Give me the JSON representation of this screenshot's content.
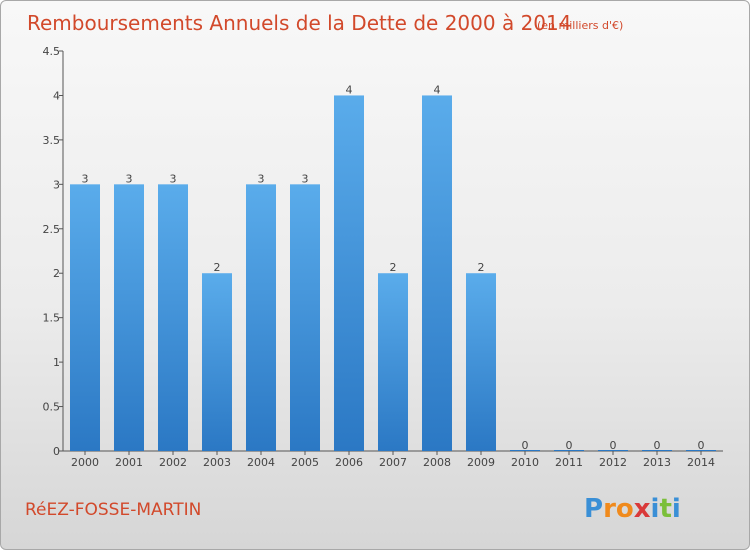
{
  "chart_data": {
    "type": "bar",
    "title": "Remboursements Annuels de la Dette de 2000 à 2014",
    "unit": "(en milliers d'€)",
    "categories": [
      "2000",
      "2001",
      "2002",
      "2003",
      "2004",
      "2005",
      "2006",
      "2007",
      "2008",
      "2009",
      "2010",
      "2011",
      "2012",
      "2013",
      "2014"
    ],
    "values": [
      3,
      3,
      3,
      2,
      3,
      3,
      4,
      2,
      4,
      2,
      0,
      0,
      0,
      0,
      0
    ],
    "ylim": [
      0,
      4.5
    ],
    "yticks": [
      "0",
      "0.5",
      "1",
      "1.5",
      "2",
      "2.5",
      "3",
      "3.5",
      "4",
      "4.5"
    ],
    "ytick_values": [
      0,
      0.5,
      1,
      1.5,
      2,
      2.5,
      3,
      3.5,
      4,
      4.5
    ],
    "grid": false,
    "bar_color": "#3a94d8"
  },
  "commune": "RéEZ-FOSSE-MARTIN",
  "brand": {
    "letters": [
      "P",
      "r",
      "o",
      "x",
      "i",
      "t",
      "i"
    ],
    "colors": [
      "#3a8fd6",
      "#f08a1c",
      "#f08a1c",
      "#d93a3a",
      "#3a8fd6",
      "#7bbf3a",
      "#3a8fd6"
    ]
  }
}
